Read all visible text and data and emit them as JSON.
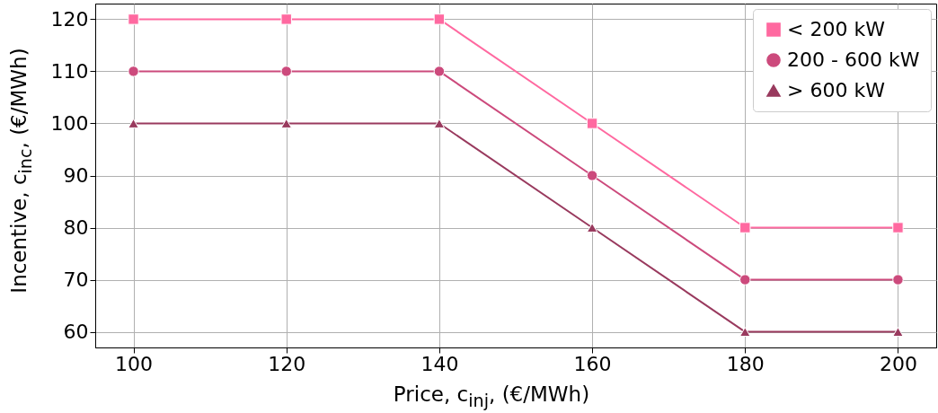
{
  "chart_data": {
    "type": "line",
    "xlabel": "Price, c$_{inj}$, (€/MWh)",
    "ylabel": "Incentive, c$_{inc}$, (€/MWh)",
    "x": [
      100,
      120,
      140,
      160,
      180,
      200
    ],
    "series": [
      {
        "name": "< 200 kW",
        "color": "#ff69a0",
        "marker": "square",
        "values": [
          120,
          120,
          120,
          100,
          80,
          80
        ]
      },
      {
        "name": "200 - 600 kW",
        "color": "#cc4a7c",
        "marker": "circle",
        "values": [
          110,
          110,
          110,
          90,
          70,
          70
        ]
      },
      {
        "name": "> 600 kW",
        "color": "#993a5e",
        "marker": "triangle",
        "values": [
          100,
          100,
          100,
          80,
          60,
          60
        ]
      }
    ],
    "xlim": [
      95,
      205
    ],
    "xticks": [
      100,
      120,
      140,
      160,
      180,
      200
    ],
    "ylim": [
      57,
      123
    ],
    "yticks": [
      60,
      70,
      80,
      90,
      100,
      110,
      120
    ],
    "grid": true,
    "legend": "top right",
    "line_style": "solid"
  }
}
